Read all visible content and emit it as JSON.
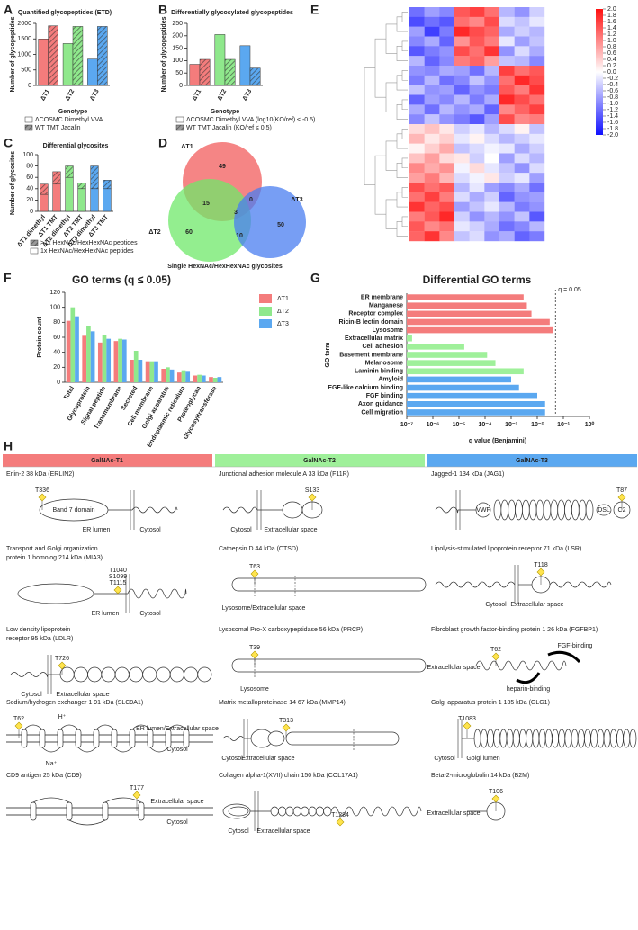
{
  "chart_data": [
    {
      "panel": "A",
      "type": "bar",
      "title": "Quantified glycopeptides (ETD)",
      "ylabel": "Number of glycopeptides",
      "xlabel": "Genotype",
      "categories": [
        "ΔT1",
        "ΔT2",
        "ΔT3"
      ],
      "colors": [
        "#f47c7c",
        "#8fe88c",
        "#5ba8f0"
      ],
      "series": [
        {
          "name": "ΔCOSMC Dimethyl VVA",
          "pattern": "solid",
          "values": [
            1500,
            1350,
            850
          ]
        },
        {
          "name": "WT TMT Jacalin",
          "pattern": "hatched",
          "values": [
            1920,
            1900,
            1900
          ]
        }
      ],
      "ylim": [
        0,
        2000
      ],
      "yticks": [
        0,
        500,
        1000,
        1500,
        2000
      ]
    },
    {
      "panel": "B",
      "type": "bar",
      "title": "Differentially glycosylated glycopeptides",
      "ylabel": "Number of glycopeptides",
      "xlabel": "Genotype",
      "categories": [
        "ΔT1",
        "ΔT2",
        "ΔT3"
      ],
      "colors": [
        "#f47c7c",
        "#8fe88c",
        "#5ba8f0"
      ],
      "series": [
        {
          "name": "ΔCOSMC Dimethyl VVA (log10(KO/ref) ≤ -0.5)",
          "pattern": "solid",
          "values": [
            85,
            205,
            160
          ]
        },
        {
          "name": "WT TMT Jacalin (KO/ref ≤ 0.5)",
          "pattern": "hatched",
          "values": [
            105,
            105,
            70
          ]
        }
      ],
      "ylim": [
        0,
        250
      ],
      "yticks": [
        0,
        50,
        100,
        150,
        200,
        250
      ]
    },
    {
      "panel": "C",
      "type": "bar",
      "stacked": true,
      "title": "Differential glycosites",
      "ylabel": "Number of glycosites",
      "categories": [
        "ΔT1 dimethyl",
        "ΔT1 TMT",
        "ΔT2 dimethyl",
        "ΔT2 TMT",
        "ΔT3 dimethyl",
        "ΔT3 TMT"
      ],
      "colors": [
        "#f47c7c",
        "#f47c7c",
        "#8fe88c",
        "#8fe88c",
        "#5ba8f0",
        "#5ba8f0"
      ],
      "series": [
        {
          "name": "1x HexNAc/HexHexNAc peptides",
          "pattern": "solid",
          "values": [
            30,
            48,
            60,
            40,
            40,
            40
          ]
        },
        {
          "name": ">1x HexNAc/HexHexNAc peptides",
          "pattern": "hatched",
          "values": [
            18,
            22,
            20,
            10,
            40,
            15
          ]
        }
      ],
      "ylim": [
        0,
        100
      ],
      "yticks": [
        0,
        20,
        40,
        60,
        80,
        100
      ]
    },
    {
      "panel": "D",
      "type": "venn",
      "title": "Single HexNAc/HexHexNAc glycosites",
      "sets": [
        "ΔT1",
        "ΔT2",
        "ΔT3"
      ],
      "colors": [
        "#f25c5c",
        "#6fe86a",
        "#4a7df0"
      ],
      "values": [
        49,
        60,
        50,
        15,
        10,
        0,
        3
      ]
    },
    {
      "panel": "E",
      "type": "heatmap",
      "colors": [
        "#1010ff",
        "#ffffff",
        "#ff1010"
      ],
      "zlim": [
        -2,
        2
      ],
      "zticks": [
        {
          "value": 2,
          "label": "2.0"
        },
        1.8,
        1.6,
        1.4,
        1.2,
        {
          "value": 1,
          "label": "1.0"
        },
        0.8,
        0.6,
        0.4,
        0.2,
        {
          "value": 0,
          "label": "0.0"
        },
        -0.2,
        -0.4,
        -0.6,
        -0.8,
        {
          "value": -1,
          "label": "-1.0"
        },
        -1.2,
        -1.4,
        -1.6,
        -1.8,
        {
          "value": -2,
          "label": "-2.0"
        }
      ],
      "values": [
        [
          -1.2,
          -0.8,
          -1.0,
          1.4,
          1.6,
          1.2,
          -0.6,
          -0.9,
          -0.4
        ],
        [
          -1.5,
          -1.2,
          -1.4,
          1.2,
          1.0,
          1.5,
          -0.3,
          -0.5,
          -0.2
        ],
        [
          -0.8,
          -1.6,
          -1.1,
          1.8,
          1.5,
          1.3,
          -0.7,
          -0.4,
          -0.6
        ],
        [
          -1.0,
          -0.7,
          -1.3,
          0.9,
          1.4,
          1.1,
          -0.2,
          -0.8,
          -0.5
        ],
        [
          -1.4,
          -1.1,
          -0.9,
          1.5,
          1.2,
          1.7,
          -0.9,
          -0.3,
          -0.7
        ],
        [
          -0.6,
          -1.3,
          -1.0,
          1.1,
          1.3,
          0.8,
          -0.5,
          -0.6,
          -1.0
        ],
        [
          -0.9,
          -1.0,
          -0.7,
          -0.8,
          -1.2,
          -0.6,
          1.6,
          1.2,
          1.4
        ],
        [
          -1.1,
          -0.6,
          -1.2,
          -1.0,
          -0.5,
          -0.9,
          1.2,
          1.8,
          1.5
        ],
        [
          -0.5,
          -0.9,
          -0.8,
          -1.3,
          -0.9,
          -1.1,
          1.4,
          1.1,
          1.7
        ],
        [
          -1.3,
          -0.8,
          -1.0,
          -0.6,
          -1.1,
          -0.7,
          1.8,
          1.5,
          1.2
        ],
        [
          -0.7,
          -1.2,
          -0.6,
          -0.9,
          -0.7,
          -1.3,
          1.0,
          1.3,
          1.6
        ],
        [
          -1.0,
          -0.5,
          -0.9,
          -1.1,
          -1.4,
          -0.8,
          1.5,
          1.0,
          1.1
        ],
        [
          0.3,
          0.5,
          0.2,
          -0.4,
          -0.2,
          -0.6,
          -0.3,
          0.1,
          -0.5
        ],
        [
          0.6,
          0.2,
          0.4,
          -0.2,
          0.1,
          -0.3,
          -0.6,
          -0.4,
          -0.2
        ],
        [
          0.1,
          0.4,
          0.7,
          -0.5,
          -0.3,
          -0.1,
          -0.2,
          -0.7,
          -0.4
        ],
        [
          0.5,
          0.8,
          0.3,
          0.2,
          -0.4,
          0.0,
          -0.8,
          -0.3,
          -0.6
        ],
        [
          1.0,
          0.7,
          0.9,
          -0.1,
          0.3,
          -0.2,
          -0.5,
          -0.9,
          -0.3
        ],
        [
          0.8,
          1.1,
          0.6,
          -0.3,
          -0.1,
          0.2,
          -0.4,
          -0.2,
          -0.8
        ],
        [
          1.5,
          1.2,
          1.4,
          -0.6,
          -0.2,
          -0.8,
          -1.0,
          -0.7,
          -1.2
        ],
        [
          1.2,
          1.6,
          1.1,
          -0.3,
          -0.7,
          -0.4,
          -1.3,
          -0.9,
          -0.8
        ],
        [
          1.7,
          1.3,
          1.5,
          -0.8,
          -0.5,
          -0.2,
          -0.6,
          -1.1,
          -0.9
        ],
        [
          1.1,
          1.4,
          1.8,
          -0.4,
          -0.9,
          -0.6,
          -0.9,
          -0.5,
          -1.4
        ],
        [
          1.4,
          1.0,
          1.2,
          -0.2,
          -0.4,
          -0.7,
          -1.2,
          -1.0,
          -0.6
        ],
        [
          1.3,
          1.7,
          1.0,
          -0.5,
          -0.3,
          -0.9,
          -0.7,
          -1.3,
          -1.1
        ]
      ]
    },
    {
      "panel": "F",
      "type": "bar",
      "title": "GO terms (q ≤ 0.05)",
      "ylabel": "Protein count",
      "categories": [
        "Total",
        "Glycoprotein",
        "Signal peptide",
        "Transmembrane",
        "Secreted",
        "Cell membrane",
        "Golgi apparatus",
        "Endoplasmic reticulum",
        "Proteoglycan",
        "Glycosyltransferase"
      ],
      "series": [
        {
          "name": "ΔT1",
          "color": "#f47c7c",
          "values": [
            82,
            62,
            53,
            55,
            30,
            28,
            18,
            13,
            9,
            7
          ]
        },
        {
          "name": "ΔT2",
          "color": "#8fe88c",
          "values": [
            100,
            75,
            63,
            58,
            42,
            28,
            20,
            16,
            10,
            6
          ]
        },
        {
          "name": "ΔT3",
          "color": "#5ba8f0",
          "values": [
            88,
            68,
            58,
            57,
            30,
            28,
            17,
            14,
            9,
            7
          ]
        }
      ],
      "ylim": [
        0,
        120
      ],
      "yticks": [
        0,
        20,
        40,
        60,
        80,
        100,
        120
      ],
      "legend": true
    },
    {
      "panel": "G",
      "type": "barh",
      "title": "Differential GO terms",
      "ylabel": "GO term",
      "xlabel": "q value (Benjamini)",
      "categories": [
        "ER membrane",
        "Manganese",
        "Receptor complex",
        "Ricin-B lectin domain",
        "Lysosome",
        "Extracellular matrix",
        "Cell adhesion",
        "Basement membrane",
        "Melanosome",
        "Laminin binding",
        "Amyloid",
        "EGF-like calcium binding",
        "FGF binding",
        "Axon guidance",
        "Cell migration"
      ],
      "values": [
        0.003,
        0.004,
        0.006,
        0.03,
        0.04,
        1.6e-07,
        1.6e-05,
        0.00012,
        0.00025,
        0.003,
        0.001,
        0.002,
        0.01,
        0.02,
        0.02
      ],
      "colors": [
        "#f47c7c",
        "#f47c7c",
        "#f47c7c",
        "#f47c7c",
        "#f47c7c",
        "#9ff09a",
        "#9ff09a",
        "#9ff09a",
        "#9ff09a",
        "#9ff09a",
        "#5ba8f0",
        "#5ba8f0",
        "#5ba8f0",
        "#5ba8f0",
        "#5ba8f0"
      ],
      "log": true,
      "xlim": [
        1e-07,
        1
      ],
      "xticks": [
        {
          "value": 1e-07,
          "label": "10⁻⁷"
        },
        {
          "value": 1e-06,
          "label": "10⁻⁶"
        },
        {
          "value": 1e-05,
          "label": "10⁻⁵"
        },
        {
          "value": 0.0001,
          "label": "10⁻⁴"
        },
        {
          "value": 0.001,
          "label": "10⁻³"
        },
        {
          "value": 0.01,
          "label": "10⁻²"
        },
        {
          "value": 0.1,
          "label": "10⁻¹"
        },
        {
          "value": 1,
          "label": "10⁰"
        }
      ],
      "refline": {
        "value": 0.05,
        "label": "q = 0.05"
      }
    }
  ],
  "panel_h": {
    "label": "H",
    "headers": [
      "GalNAc-T1",
      "GalNAc-T2",
      "GalNAc-T3"
    ],
    "header_colors": [
      "#f47c7c",
      "#9ff09a",
      "#5ba8f0"
    ],
    "columns": [
      [
        {
          "title": [
            "Erlin-2  38 kDa (ERLIN2)"
          ],
          "sites": [
            "T336"
          ],
          "locations": [
            "ER lumen",
            "Cytosol"
          ],
          "domains": [
            "Band 7 domain"
          ]
        },
        {
          "title": [
            "Transport and Golgi organization",
            "protein 1 homolog  214 kDa (MIA3)"
          ],
          "sites": [
            "T1040",
            "S1099",
            "T1115"
          ],
          "locations": [
            "ER lumen",
            "Cytosol"
          ]
        },
        {
          "title": [
            "Low density lipoprotein",
            "receptor  95 kDa (LDLR)"
          ],
          "sites": [
            "T726"
          ],
          "locations": [
            "Cytosol",
            "Extracellular space"
          ]
        },
        {
          "title": [
            "Sodium/hydrogen exchanger 1  91 kDa (SLC9A1)"
          ],
          "sites": [
            "T62"
          ],
          "locations": [
            "ER lumen/Extracellular space",
            "Cytosol"
          ],
          "domains": [
            "H⁺",
            "Na⁺"
          ]
        },
        {
          "title": [
            "CD9 antigen  25 kDa (CD9)"
          ],
          "sites": [
            "T177"
          ],
          "locations": [
            "Extracellular space",
            "Cytosol"
          ]
        }
      ],
      [
        {
          "title": [
            "Junctional adhesion molecule A  33 kDa (F11R)"
          ],
          "sites": [
            "S133"
          ],
          "locations": [
            "Cytosol",
            "Extracellular space"
          ]
        },
        {
          "title": [
            "Cathepsin D  44 kDa (CTSD)"
          ],
          "sites": [
            "T63"
          ],
          "locations": [
            "Lysosome/Extracellular space"
          ]
        },
        {
          "title": [
            "Lysosomal Pro-X carboxypeptidase  56 kDa (PRCP)"
          ],
          "sites": [
            "T39"
          ],
          "locations": [
            "Lysosome"
          ]
        },
        {
          "title": [
            "Matrix metalloproteinase 14  67 kDa (MMP14)"
          ],
          "sites": [
            "T313"
          ],
          "locations": [
            "Cytosol",
            "Extracellular space"
          ]
        },
        {
          "title": [
            "Collagen alpha-1(XVII) chain  150 kDa (COL17A1)"
          ],
          "sites": [
            "T1284"
          ],
          "locations": [
            "Cytosol",
            "Extracellular space"
          ]
        }
      ],
      [
        {
          "title": [
            "Jagged-1  134 kDa (JAG1)"
          ],
          "sites": [
            "T87"
          ],
          "domains": [
            "VWF",
            "DSL",
            "C2"
          ]
        },
        {
          "title": [
            "Lipolysis-stimulated lipoprotein receptor  71 kDa (LSR)"
          ],
          "sites": [
            "T118"
          ],
          "locations": [
            "Cytosol",
            "Extracellular space"
          ]
        },
        {
          "title": [
            "Fibroblast growth factor-binding protein 1  26 kDa (FGFBP1)"
          ],
          "sites": [
            "T62"
          ],
          "locations": [
            "Extracellular space"
          ],
          "domains": [
            "FGF-binding",
            "heparin-binding"
          ]
        },
        {
          "title": [
            "Golgi apparatus protein 1  135 kDa (GLG1)"
          ],
          "sites": [
            "T1083"
          ],
          "locations": [
            "Cytosol",
            "Golgi lumen"
          ]
        },
        {
          "title": [
            "Beta-2-microglobulin  14 kDa (B2M)"
          ],
          "sites": [
            "T106"
          ],
          "locations": [
            "Extracellular space"
          ]
        }
      ]
    ]
  }
}
